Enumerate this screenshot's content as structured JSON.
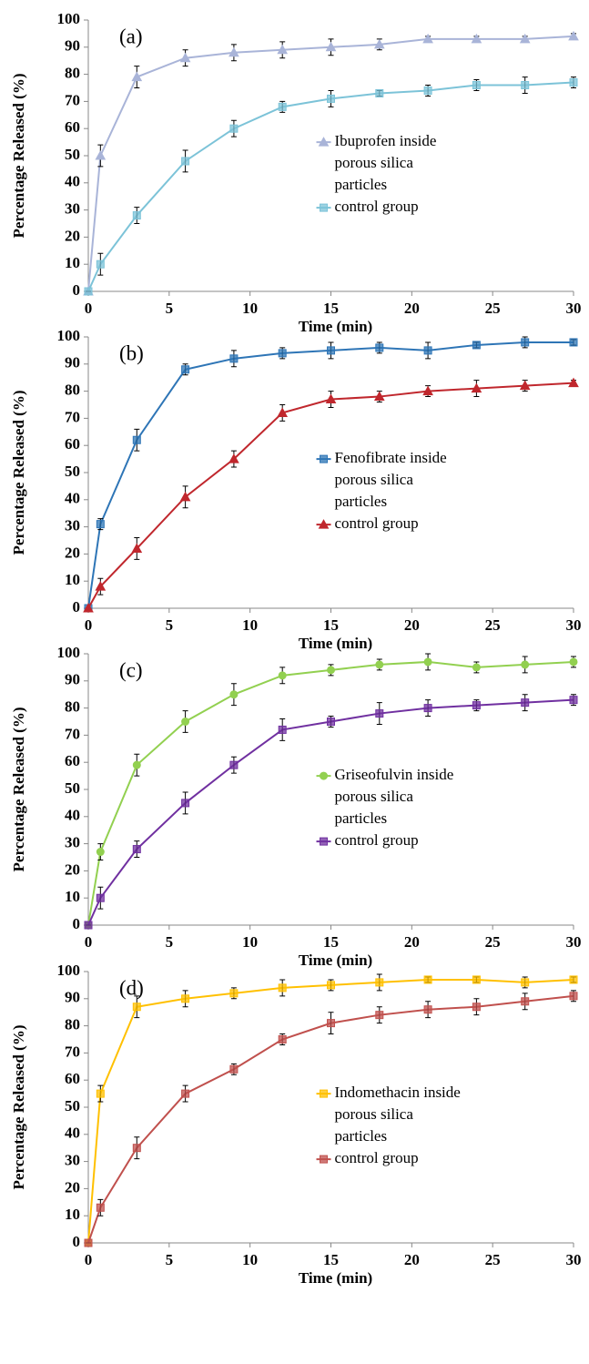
{
  "chart_data": [
    {
      "type": "line",
      "label": "(a)",
      "xlabel": "Time (min)",
      "ylabel": "Percentage Released (%)",
      "x": [
        0,
        0.75,
        3,
        6,
        9,
        12,
        15,
        18,
        21,
        24,
        27,
        30
      ],
      "xlim": [
        0,
        30
      ],
      "xticks": [
        0,
        5,
        10,
        15,
        20,
        25,
        30
      ],
      "ylim": [
        0,
        100
      ],
      "yticks": [
        0,
        10,
        20,
        30,
        40,
        50,
        60,
        70,
        80,
        90,
        100
      ],
      "series": [
        {
          "name": "Ibuprofen inside porous silica particles",
          "color": "#a9b4d8",
          "marker": "triangle",
          "values": [
            0,
            50,
            79,
            86,
            88,
            89,
            90,
            91,
            93,
            93,
            93,
            94
          ],
          "errors": [
            0,
            4,
            4,
            3,
            3,
            3,
            3,
            2,
            1,
            1,
            1,
            1
          ]
        },
        {
          "name": "control group",
          "color": "#7cc3d8",
          "marker": "square",
          "values": [
            0,
            10,
            28,
            48,
            60,
            68,
            71,
            73,
            74,
            76,
            76,
            77
          ],
          "errors": [
            0,
            4,
            3,
            4,
            3,
            2,
            3,
            1,
            2,
            2,
            3,
            2
          ]
        }
      ]
    },
    {
      "type": "line",
      "label": "(b)",
      "xlabel": "Time (min)",
      "ylabel": "Percentage Released (%)",
      "x": [
        0,
        0.75,
        3,
        6,
        9,
        12,
        15,
        18,
        21,
        24,
        27,
        30
      ],
      "xlim": [
        0,
        30
      ],
      "xticks": [
        0,
        5,
        10,
        15,
        20,
        25,
        30
      ],
      "ylim": [
        0,
        100
      ],
      "yticks": [
        0,
        10,
        20,
        30,
        40,
        50,
        60,
        70,
        80,
        90,
        100
      ],
      "series": [
        {
          "name": "Fenofibrate inside porous silica particles",
          "color": "#2e75b6",
          "marker": "square",
          "values": [
            0,
            31,
            62,
            88,
            92,
            94,
            95,
            96,
            95,
            97,
            98,
            98
          ],
          "errors": [
            0,
            2,
            4,
            2,
            3,
            2,
            3,
            2,
            3,
            1,
            2,
            1
          ]
        },
        {
          "name": "control group",
          "color": "#c0272d",
          "marker": "triangle",
          "values": [
            0,
            8,
            22,
            41,
            55,
            72,
            77,
            78,
            80,
            81,
            82,
            83
          ],
          "errors": [
            0,
            3,
            4,
            4,
            3,
            3,
            3,
            2,
            2,
            3,
            2,
            1
          ]
        }
      ]
    },
    {
      "type": "line",
      "label": "(c)",
      "xlabel": "Time (min)",
      "ylabel": "Percentage Released (%)",
      "x": [
        0,
        0.75,
        3,
        6,
        9,
        12,
        15,
        18,
        21,
        24,
        27,
        30
      ],
      "xlim": [
        0,
        30
      ],
      "xticks": [
        0,
        5,
        10,
        15,
        20,
        25,
        30
      ],
      "ylim": [
        0,
        100
      ],
      "yticks": [
        0,
        10,
        20,
        30,
        40,
        50,
        60,
        70,
        80,
        90,
        100
      ],
      "series": [
        {
          "name": "Griseofulvin inside porous silica particles",
          "color": "#92d050",
          "marker": "circle",
          "values": [
            0,
            27,
            59,
            75,
            85,
            92,
            94,
            96,
            97,
            95,
            96,
            97
          ],
          "errors": [
            0,
            3,
            4,
            4,
            4,
            3,
            2,
            2,
            3,
            2,
            3,
            2
          ]
        },
        {
          "name": "control group",
          "color": "#7030a0",
          "marker": "square",
          "values": [
            0,
            10,
            28,
            45,
            59,
            72,
            75,
            78,
            80,
            81,
            82,
            83
          ],
          "errors": [
            0,
            4,
            3,
            4,
            3,
            4,
            2,
            4,
            3,
            2,
            3,
            2
          ]
        }
      ]
    },
    {
      "type": "line",
      "label": "(d)",
      "xlabel": "Time (min)",
      "ylabel": "Percentage Released (%)",
      "x": [
        0,
        0.75,
        3,
        6,
        9,
        12,
        15,
        18,
        21,
        24,
        27,
        30
      ],
      "xlim": [
        0,
        30
      ],
      "xticks": [
        0,
        5,
        10,
        15,
        20,
        25,
        30
      ],
      "ylim": [
        0,
        100
      ],
      "yticks": [
        0,
        10,
        20,
        30,
        40,
        50,
        60,
        70,
        80,
        90,
        100
      ],
      "series": [
        {
          "name": "Indomethacin inside porous silica particles",
          "color": "#ffc000",
          "marker": "square",
          "values": [
            0,
            55,
            87,
            90,
            92,
            94,
            95,
            96,
            97,
            97,
            96,
            97
          ],
          "errors": [
            0,
            3,
            4,
            3,
            2,
            3,
            2,
            3,
            1,
            1,
            2,
            1
          ]
        },
        {
          "name": "control group",
          "color": "#c0504d",
          "marker": "square",
          "values": [
            0,
            13,
            35,
            55,
            64,
            75,
            81,
            84,
            86,
            87,
            89,
            91
          ],
          "errors": [
            0,
            3,
            4,
            3,
            2,
            2,
            4,
            3,
            3,
            3,
            3,
            2
          ]
        }
      ]
    }
  ]
}
